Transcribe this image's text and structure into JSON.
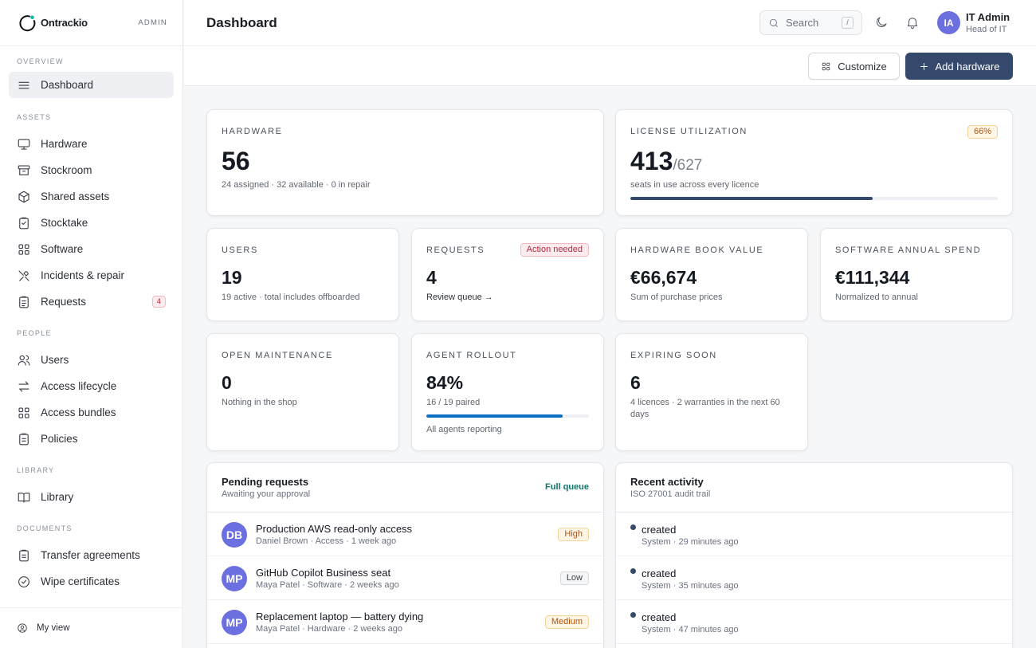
{
  "brand": {
    "name": "Ontrackio",
    "role": "ADMIN"
  },
  "sidebar": {
    "sections": {
      "overview": "OVERVIEW",
      "assets": "ASSETS",
      "people": "PEOPLE",
      "library": "LIBRARY",
      "documents": "DOCUMENTS"
    },
    "items": {
      "dashboard": "Dashboard",
      "hardware": "Hardware",
      "stockroom": "Stockroom",
      "shared_assets": "Shared assets",
      "stocktake": "Stocktake",
      "software": "Software",
      "incidents": "Incidents & repair",
      "requests": "Requests",
      "requests_badge": "4",
      "users": "Users",
      "access_lifecycle": "Access lifecycle",
      "access_bundles": "Access bundles",
      "policies": "Policies",
      "library": "Library",
      "transfer_agreements": "Transfer agreements",
      "wipe_certificates": "Wipe certificates"
    },
    "footer": "My view"
  },
  "header": {
    "title": "Dashboard",
    "search_placeholder": "Search",
    "search_shortcut": "/",
    "user_initials": "IA",
    "user_name": "IT Admin",
    "user_role": "Head of IT"
  },
  "actions": {
    "customize": "Customize",
    "add_hardware": "Add hardware"
  },
  "cards": {
    "hardware": {
      "label": "HARDWARE",
      "value": "56",
      "sub": "24 assigned · 32 available · 0 in repair"
    },
    "license": {
      "label": "LICENSE UTILIZATION",
      "value": "413",
      "denom": "/627",
      "sub": "seats in use across every licence",
      "badge": "66%",
      "progress": 0.66
    },
    "users": {
      "label": "USERS",
      "value": "19",
      "sub": "19 active · total includes offboarded"
    },
    "requests": {
      "label": "REQUESTS",
      "value": "4",
      "badge": "Action needed",
      "link": "Review queue →"
    },
    "book_value": {
      "label": "HARDWARE BOOK VALUE",
      "value": "€66,674",
      "sub": "Sum of purchase prices"
    },
    "annual_spend": {
      "label": "SOFTWARE ANNUAL SPEND",
      "value": "€111,344",
      "sub": "Normalized to annual"
    },
    "maintenance": {
      "label": "OPEN MAINTENANCE",
      "value": "0",
      "sub": "Nothing in the shop"
    },
    "rollout": {
      "label": "AGENT ROLLOUT",
      "value": "84%",
      "sub": "16 / 19 paired",
      "progress": 0.84,
      "foot": "All agents reporting"
    },
    "expiring": {
      "label": "EXPIRING SOON",
      "value": "6",
      "sub": "4 licences · 2 warranties in the next 60 days"
    }
  },
  "pending": {
    "title": "Pending requests",
    "subtitle": "Awaiting your approval",
    "link": "Full queue",
    "rows": [
      {
        "initials": "DB",
        "title": "Production AWS read-only access",
        "meta": "Daniel Brown · Access · 1 week ago",
        "priority": "High"
      },
      {
        "initials": "MP",
        "title": "GitHub Copilot Business seat",
        "meta": "Maya Patel · Software · 2 weeks ago",
        "priority": "Low"
      },
      {
        "initials": "MP",
        "title": "Replacement laptop — battery dying",
        "meta": "Maya Patel · Hardware · 2 weeks ago",
        "priority": "Medium"
      }
    ]
  },
  "activity": {
    "title": "Recent activity",
    "subtitle": "ISO 27001 audit trail",
    "rows": [
      {
        "title": "created",
        "meta": "System · 29 minutes ago"
      },
      {
        "title": "created",
        "meta": "System · 35 minutes ago"
      },
      {
        "title": "created",
        "meta": "System · 47 minutes ago"
      }
    ]
  },
  "colors": {
    "accent": "#34496b",
    "avatar": "#6b6fe0",
    "progress_blue": "#0b6fc4",
    "brand_teal": "#0fb5a6"
  }
}
